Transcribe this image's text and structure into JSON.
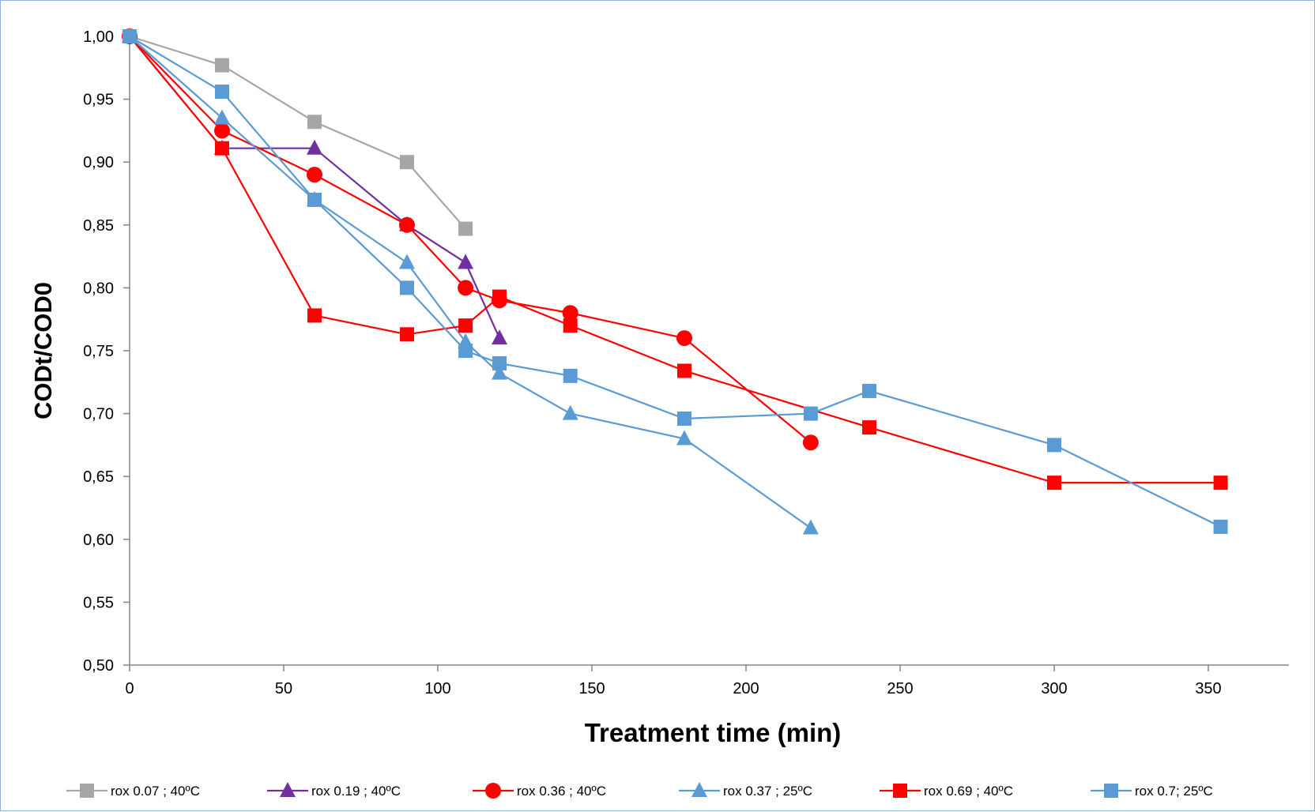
{
  "chart_data": {
    "type": "line",
    "title": "",
    "xlabel": "Treatment time (min)",
    "ylabel": "CODt/COD0",
    "xlim": [
      0,
      380
    ],
    "ylim": [
      0.5,
      1.0
    ],
    "x_ticks": [
      0,
      50,
      100,
      150,
      200,
      250,
      300,
      350
    ],
    "x_tick_labels": [
      "0",
      "50",
      "100",
      "150",
      "200",
      "250",
      "300",
      "350"
    ],
    "y_ticks": [
      0.5,
      0.55,
      0.6,
      0.65,
      0.7,
      0.75,
      0.8,
      0.85,
      0.9,
      0.95,
      1.0
    ],
    "y_tick_labels": [
      "0,50",
      "0,55",
      "0,60",
      "0,65",
      "0,70",
      "0,75",
      "0,80",
      "0,85",
      "0,90",
      "0,95",
      "1,00"
    ],
    "grid": false,
    "legend_position": "bottom",
    "series": [
      {
        "name": "rox 0.07 ; 40ºC",
        "color": "#a6a6a6",
        "marker": "square",
        "x": [
          0,
          30,
          60,
          90,
          109
        ],
        "y": [
          1.0,
          0.977,
          0.932,
          0.9,
          0.847
        ]
      },
      {
        "name": "rox 0.19 ; 40ºC",
        "color": "#7030a0",
        "marker": "triangle",
        "x": [
          0,
          30,
          60,
          90,
          109,
          120
        ],
        "y": [
          1.0,
          0.911,
          0.911,
          0.85,
          0.82,
          0.76
        ]
      },
      {
        "name": "rox 0.36 ; 40ºC",
        "color": "#ff0000",
        "marker": "circle",
        "x": [
          0,
          30,
          60,
          90,
          109,
          120,
          143,
          180,
          221
        ],
        "y": [
          1.0,
          0.925,
          0.89,
          0.85,
          0.8,
          0.79,
          0.78,
          0.76,
          0.677
        ]
      },
      {
        "name": "rox 0.37 ; 25ºC",
        "color": "#5b9bd5",
        "marker": "triangle",
        "x": [
          0,
          30,
          60,
          90,
          109,
          120,
          143,
          180,
          221
        ],
        "y": [
          1.0,
          0.935,
          0.87,
          0.82,
          0.757,
          0.732,
          0.7,
          0.68,
          0.609
        ]
      },
      {
        "name": "rox 0.69 ; 40ºC",
        "color": "#ff0000",
        "marker": "square",
        "x": [
          0,
          30,
          60,
          90,
          109,
          120,
          143,
          180,
          240,
          300,
          354
        ],
        "y": [
          1.0,
          0.911,
          0.778,
          0.763,
          0.77,
          0.793,
          0.77,
          0.734,
          0.689,
          0.645,
          0.645
        ]
      },
      {
        "name": "rox 0.7; 25ºC",
        "color": "#5b9bd5",
        "marker": "square",
        "x": [
          0,
          30,
          60,
          90,
          109,
          120,
          143,
          180,
          221,
          240,
          300,
          354
        ],
        "y": [
          1.0,
          0.956,
          0.87,
          0.8,
          0.75,
          0.74,
          0.73,
          0.696,
          0.7,
          0.718,
          0.675,
          0.61
        ]
      }
    ]
  }
}
